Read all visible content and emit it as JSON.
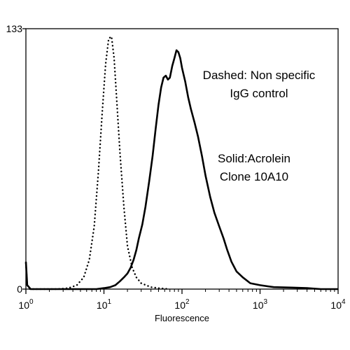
{
  "chart_data": {
    "type": "line",
    "title": "",
    "xlabel": "Fluorescence",
    "ylabel": "",
    "x_scale": "log",
    "xlim": [
      1,
      10000
    ],
    "ylim": [
      0,
      133
    ],
    "x_ticks": [
      {
        "value": 1,
        "base": "10",
        "exp": "0"
      },
      {
        "value": 10,
        "base": "10",
        "exp": "1"
      },
      {
        "value": 100,
        "base": "10",
        "exp": "2"
      },
      {
        "value": 1000,
        "base": "10",
        "exp": "3"
      },
      {
        "value": 10000,
        "base": "10",
        "exp": "4"
      }
    ],
    "y_ticks": [
      {
        "value": 0,
        "label": "0"
      },
      {
        "value": 133,
        "label": "133"
      }
    ],
    "grid": false,
    "legend": "none",
    "annotations": [
      {
        "id": "dashed",
        "lines": [
          "Dashed: Non specific",
          "IgG control"
        ]
      },
      {
        "id": "solid",
        "lines": [
          "Solid:Acrolein",
          "Clone 10A10"
        ]
      }
    ],
    "series": [
      {
        "style": "dotted",
        "color": "#000000",
        "points": [
          [
            1,
            13
          ],
          [
            1.04,
            2
          ],
          [
            1.12,
            0
          ],
          [
            2.5,
            0
          ],
          [
            3.5,
            0.5
          ],
          [
            4.5,
            2
          ],
          [
            5.5,
            6
          ],
          [
            6.5,
            15
          ],
          [
            7.5,
            32
          ],
          [
            8.5,
            60
          ],
          [
            9.5,
            90
          ],
          [
            10.5,
            115
          ],
          [
            11.5,
            128
          ],
          [
            12.5,
            129
          ],
          [
            13.5,
            118
          ],
          [
            14.5,
            98
          ],
          [
            16,
            70
          ],
          [
            18,
            42
          ],
          [
            20,
            22
          ],
          [
            23,
            11
          ],
          [
            26,
            6
          ],
          [
            30,
            3
          ],
          [
            40,
            1
          ],
          [
            50,
            0.5
          ],
          [
            70,
            0
          ]
        ]
      },
      {
        "style": "solid",
        "color": "#000000",
        "points": [
          [
            1,
            14
          ],
          [
            1.04,
            2
          ],
          [
            1.15,
            0
          ],
          [
            8,
            0
          ],
          [
            10,
            0.5
          ],
          [
            12,
            1
          ],
          [
            14,
            2
          ],
          [
            16,
            4
          ],
          [
            18,
            6
          ],
          [
            20,
            8
          ],
          [
            22,
            11
          ],
          [
            24,
            15
          ],
          [
            26,
            20
          ],
          [
            28,
            26
          ],
          [
            31,
            33
          ],
          [
            34,
            42
          ],
          [
            38,
            55
          ],
          [
            42,
            68
          ],
          [
            46,
            82
          ],
          [
            50,
            94
          ],
          [
            54,
            103
          ],
          [
            58,
            108
          ],
          [
            62,
            109
          ],
          [
            66,
            107
          ],
          [
            70,
            108
          ],
          [
            75,
            114
          ],
          [
            80,
            118
          ],
          [
            85,
            122
          ],
          [
            90,
            121
          ],
          [
            95,
            118
          ],
          [
            100,
            113
          ],
          [
            110,
            106
          ],
          [
            120,
            98
          ],
          [
            130,
            92
          ],
          [
            145,
            85
          ],
          [
            160,
            78
          ],
          [
            180,
            68
          ],
          [
            200,
            58
          ],
          [
            230,
            47
          ],
          [
            260,
            39
          ],
          [
            300,
            32
          ],
          [
            340,
            26
          ],
          [
            380,
            20
          ],
          [
            430,
            14
          ],
          [
            500,
            9
          ],
          [
            600,
            6
          ],
          [
            750,
            3
          ],
          [
            1000,
            2
          ],
          [
            1500,
            1
          ],
          [
            2500,
            0.8
          ],
          [
            4000,
            0.5
          ],
          [
            6000,
            0
          ],
          [
            10000,
            0
          ]
        ]
      }
    ]
  }
}
